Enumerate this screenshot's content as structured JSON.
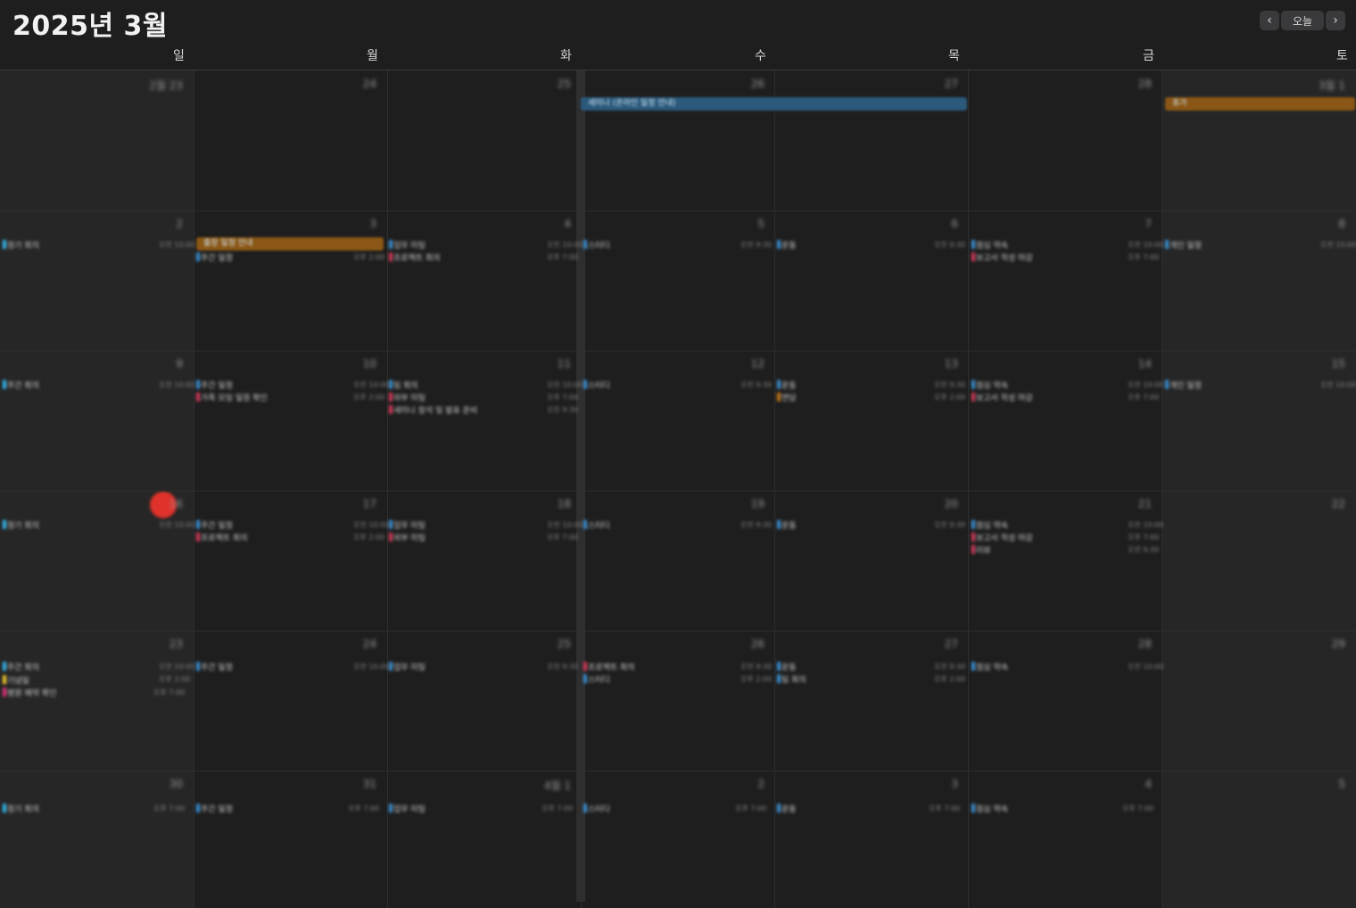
{
  "header": {
    "title": "2025년 3월",
    "today_label": "오늘",
    "prev_icon": "chevron-left-icon",
    "next_icon": "chevron-right-icon"
  },
  "weekdays": [
    "일",
    "월",
    "화",
    "수",
    "목",
    "금",
    "토"
  ],
  "colors": {
    "blue": "#3b8fd0",
    "orange": "#c07a1c",
    "red": "#d13a5a",
    "cyan": "#35b8f0",
    "yellow": "#f2cc2a",
    "magenta": "#e0307a",
    "today": "#e0322b"
  },
  "weeks": [
    {
      "days": [
        "2월 23",
        "24",
        "25",
        "26",
        "27",
        "28",
        "3월 1"
      ]
    },
    {
      "days": [
        "2",
        "3",
        "4",
        "5",
        "6",
        "7",
        "8"
      ]
    },
    {
      "days": [
        "9",
        "10",
        "11",
        "12",
        "13",
        "14",
        "15"
      ]
    },
    {
      "days": [
        "16",
        "17",
        "18",
        "19",
        "20",
        "21",
        "22"
      ]
    },
    {
      "days": [
        "23",
        "24",
        "25",
        "26",
        "27",
        "28",
        "29"
      ]
    },
    {
      "days": [
        "30",
        "31",
        "4월 1",
        "2",
        "3",
        "4",
        "5"
      ]
    }
  ],
  "spanning_events": [
    {
      "title": "세미나 (온라인 일정 안내)",
      "color": "blue"
    },
    {
      "title": "휴가",
      "color": "orange"
    },
    {
      "title": "출장 일정 안내",
      "color": "orange"
    }
  ],
  "events": [
    {
      "title": "정기 회의",
      "color": "cyan"
    },
    {
      "title": "주간 일정",
      "color": "blue"
    },
    {
      "title": "업무 미팅",
      "color": "blue"
    },
    {
      "title": "프로젝트 회의",
      "color": "red"
    },
    {
      "title": "스터디",
      "color": "blue"
    },
    {
      "title": "운동",
      "color": "blue"
    },
    {
      "title": "점심 약속",
      "color": "blue"
    },
    {
      "title": "보고서 작성 마감",
      "color": "red"
    },
    {
      "title": "개인 일정",
      "color": "blue"
    },
    {
      "title": "주간 회의",
      "color": "cyan"
    },
    {
      "title": "가족 모임 일정 확인",
      "color": "red"
    },
    {
      "title": "팀 회의",
      "color": "blue"
    },
    {
      "title": "외부 미팅",
      "color": "red"
    },
    {
      "title": "세미나 참석 및 발표 준비",
      "color": "red"
    },
    {
      "title": "면담",
      "color": "orange"
    },
    {
      "title": "리뷰",
      "color": "red"
    },
    {
      "title": "기념일",
      "color": "yellow"
    },
    {
      "title": "병원 예약 확인",
      "color": "magenta"
    }
  ],
  "times": [
    "오전 10:00",
    "오후 2:00",
    "오후 7:00",
    "오전 9:30"
  ]
}
